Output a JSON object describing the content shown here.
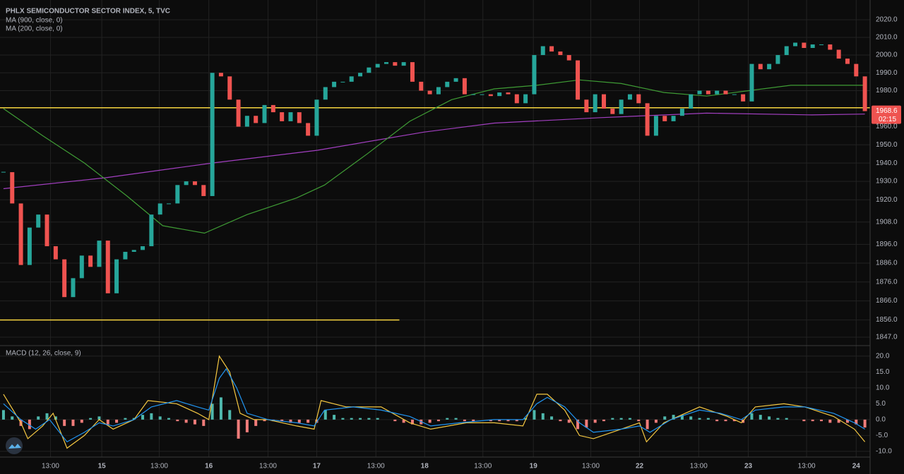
{
  "chart_data": [
    {
      "type": "candlestick",
      "title": "PHLX SEMICONDUCTOR SECTOR INDEX, 5, TVC",
      "up_color": "#26a69a",
      "down_color": "#ef5350",
      "values": [
        1935,
        1918,
        1885,
        1905,
        1912,
        1895,
        1888,
        1868,
        1878,
        1890,
        1884,
        1898,
        1870,
        1888,
        1892,
        1893,
        1895,
        1912,
        1918,
        1918,
        1928,
        1930,
        1928,
        1922,
        1990,
        1988,
        1975,
        1960,
        1966,
        1962,
        1972,
        1968,
        1963,
        1968,
        1962,
        1955,
        1975,
        1982,
        1985,
        1985,
        1988,
        1990,
        1993,
        1995,
        1996,
        1994,
        1996,
        1985,
        1980,
        1978,
        1982,
        1985,
        1987,
        1978,
        1978,
        1978,
        1977,
        1979,
        1978,
        1973,
        1978,
        2000,
        2005,
        2002,
        2000,
        1997,
        1975,
        1968,
        1978,
        1970,
        1967,
        1975,
        1978,
        1973,
        1955,
        1966,
        1963,
        1966,
        1970,
        1978,
        1980,
        1978,
        1980,
        1978,
        1978,
        1974,
        1995,
        1992,
        1995,
        2000,
        2005,
        2007,
        2004,
        2006,
        2006,
        2003,
        1998,
        1995,
        1988,
        1968.6
      ],
      "series": [
        {
          "name": "MA (900, close, 0)",
          "color": "#a23fc0",
          "x": [
            0,
            11.8,
            24.0,
            36.1,
            48.3,
            56.4,
            68.6,
            80.8,
            92.9,
            99.0
          ],
          "values": [
            1926,
            1932,
            1940,
            1947,
            1957,
            1962,
            1965,
            1967.5,
            1966.5,
            1967
          ]
        },
        {
          "name": "MA (200, close, 0)",
          "color": "#3f9c35",
          "x": [
            0,
            4.5,
            9.3,
            14.2,
            18.3,
            23.1,
            28.0,
            33.7,
            36.9,
            41.8,
            46.7,
            51.5,
            56.4,
            61.3,
            66.2,
            71.0,
            75.9,
            80.8,
            85.6,
            90.5,
            95.4,
            99.0
          ],
          "values": [
            1970,
            1955,
            1940,
            1922,
            1906,
            1902,
            1912,
            1921,
            1928,
            1945,
            1963,
            1975,
            1981,
            1983,
            1986,
            1984,
            1979,
            1977,
            1980,
            1983,
            1983,
            1983
          ]
        }
      ],
      "hlines": [
        {
          "value": 1970.5,
          "color": "#f5d33f"
        },
        {
          "value": 1856,
          "color": "#f5d33f",
          "x_range": [
            -0.4,
            45.5
          ]
        }
      ],
      "last_price": 1968.6,
      "countdown": "02:15",
      "last_color": "#ef5350",
      "log_scale": true,
      "grid": true,
      "xlim": [
        -0.4,
        99.6
      ],
      "ylim": [
        1842.6,
        2031.3
      ],
      "yticks": [
        {
          "value": 2020,
          "label": "2020.0"
        },
        {
          "value": 2010,
          "label": "2010.0"
        },
        {
          "value": 2000,
          "label": "2000.0"
        },
        {
          "value": 1990,
          "label": "1990.0"
        },
        {
          "value": 1980,
          "label": "1980.0"
        },
        {
          "value": 1960,
          "label": "1960.0"
        },
        {
          "value": 1950,
          "label": "1950.0"
        },
        {
          "value": 1940,
          "label": "1940.0"
        },
        {
          "value": 1930,
          "label": "1930.0"
        },
        {
          "value": 1920,
          "label": "1920.0"
        },
        {
          "value": 1908,
          "label": "1908.0"
        },
        {
          "value": 1896,
          "label": "1896.0"
        },
        {
          "value": 1886,
          "label": "1886.0"
        },
        {
          "value": 1876,
          "label": "1876.0"
        },
        {
          "value": 1866,
          "label": "1866.0"
        },
        {
          "value": 1856,
          "label": "1856.0"
        },
        {
          "value": 1847,
          "label": "1847.0"
        }
      ]
    },
    {
      "type": "macd",
      "title": "MACD (12, 26, close, 9)",
      "histogram": {
        "colors": [
          "#4fb8ad",
          "#f07c7a"
        ],
        "values": [
          3,
          1,
          -2,
          -3,
          1,
          2,
          1,
          -2,
          -2,
          -1,
          0.5,
          1,
          -1.5,
          -1,
          0.5,
          0.5,
          1.5,
          2,
          1,
          0.5,
          -0.5,
          -1,
          -1.5,
          -2,
          5,
          7,
          3,
          -6,
          -4,
          -2,
          -0.5,
          -0.5,
          -0.5,
          -1,
          -1,
          -1,
          -1,
          3,
          1.5,
          0.5,
          0.5,
          0.5,
          0.5,
          0.5,
          0,
          -0.5,
          -1,
          -1.5,
          -1.5,
          -1,
          -0.5,
          0.5,
          0.5,
          -0.5,
          -0.5,
          0,
          -0.5,
          -0.5,
          -0.5,
          -0.5,
          0.5,
          3,
          2,
          1,
          -0.5,
          -1,
          -3,
          -2.5,
          -1,
          -0.5,
          0.5,
          0.5,
          0.5,
          -0.5,
          -3,
          -1,
          1,
          1.5,
          1.5,
          1,
          0.5,
          0.5,
          -0.5,
          -0.5,
          -0.5,
          -1,
          2,
          1.5,
          1,
          0.5,
          0.5,
          0,
          -0.5,
          -0.5,
          -0.5,
          -1,
          -1,
          -1,
          -1.5,
          -2.5
        ]
      },
      "series": [
        {
          "color": "#f5c842",
          "x": [
            0,
            2.0,
            2.8,
            4.5,
            5.7,
            7.3,
            9.3,
            11.0,
            12.6,
            15.0,
            16.6,
            19.9,
            22.3,
            23.6,
            24.8,
            26.0,
            27.2,
            28.8,
            30.4,
            33.7,
            35.7,
            36.5,
            39.4,
            43.4,
            46.7,
            49.1,
            53.2,
            56.4,
            59.7,
            61.3,
            62.5,
            64.5,
            66.2,
            67.8,
            71.0,
            73.1,
            73.9,
            75.9,
            80.0,
            83.2,
            84.8,
            86.4,
            89.7,
            92.1,
            95.4,
            97.8,
            99.0
          ],
          "values": [
            8,
            -1,
            -6,
            -2,
            2,
            -9,
            -5,
            0,
            -3,
            0,
            6,
            5,
            2,
            0,
            20,
            15,
            2,
            0,
            0,
            -2,
            -3,
            6,
            4,
            4,
            -1,
            -3,
            -1,
            -1,
            -2,
            8,
            8,
            3,
            -5,
            -6,
            -3,
            -1,
            -7,
            -1,
            4,
            1,
            -1,
            4,
            5,
            4,
            1,
            -3,
            -7
          ]
        },
        {
          "color": "#2196f3",
          "x": [
            0,
            2.0,
            3.7,
            5.3,
            7.3,
            9.3,
            11.0,
            12.6,
            15.0,
            17.0,
            19.9,
            22.3,
            23.6,
            24.8,
            25.6,
            26.8,
            28.0,
            30.4,
            33.7,
            35.7,
            36.9,
            40.2,
            43.4,
            46.7,
            49.1,
            52.4,
            56.4,
            59.7,
            61.3,
            62.5,
            64.5,
            66.2,
            67.8,
            71.0,
            73.1,
            74.3,
            76.7,
            80.0,
            82.4,
            84.8,
            86.4,
            89.7,
            92.1,
            95.4,
            97.8,
            99.0
          ],
          "values": [
            5,
            0,
            -3,
            0,
            -7,
            -4,
            -1,
            -2,
            0,
            4,
            6,
            4,
            3,
            13,
            16,
            10,
            2,
            0,
            -1,
            -2,
            3,
            4,
            3,
            1,
            -2,
            -1,
            0,
            0,
            5,
            7,
            4,
            -1,
            -4,
            -3,
            -2,
            -4,
            0,
            3,
            2,
            0,
            3,
            4,
            4,
            2,
            -1,
            -3
          ]
        }
      ],
      "grid": true,
      "xlim": [
        -0.4,
        99.6
      ],
      "ylim": [
        -11.8,
        23.3
      ],
      "yticks": [
        {
          "value": 20,
          "label": "20.0"
        },
        {
          "value": 15,
          "label": "15.0"
        },
        {
          "value": 10,
          "label": "10.0"
        },
        {
          "value": 5,
          "label": "5.0"
        },
        {
          "value": 0,
          "label": "0.0"
        },
        {
          "value": -5,
          "label": "-5.0"
        },
        {
          "value": -10,
          "label": "-10.0"
        }
      ],
      "xticks": [
        {
          "value": 5.4,
          "label": "13:00"
        },
        {
          "value": 11.3,
          "label": "15"
        },
        {
          "value": 17.9,
          "label": "13:00"
        },
        {
          "value": 23.6,
          "label": "16"
        },
        {
          "value": 30.4,
          "label": "13:00"
        },
        {
          "value": 36.0,
          "label": "17"
        },
        {
          "value": 42.8,
          "label": "13:00"
        },
        {
          "value": 48.4,
          "label": "18"
        },
        {
          "value": 55.1,
          "label": "13:00"
        },
        {
          "value": 60.9,
          "label": "19"
        },
        {
          "value": 67.5,
          "label": "13:00"
        },
        {
          "value": 73.1,
          "label": "22"
        },
        {
          "value": 79.9,
          "label": "13:00"
        },
        {
          "value": 85.6,
          "label": "23"
        },
        {
          "value": 92.3,
          "label": "13:00"
        },
        {
          "value": 98.0,
          "label": "24"
        }
      ]
    }
  ]
}
